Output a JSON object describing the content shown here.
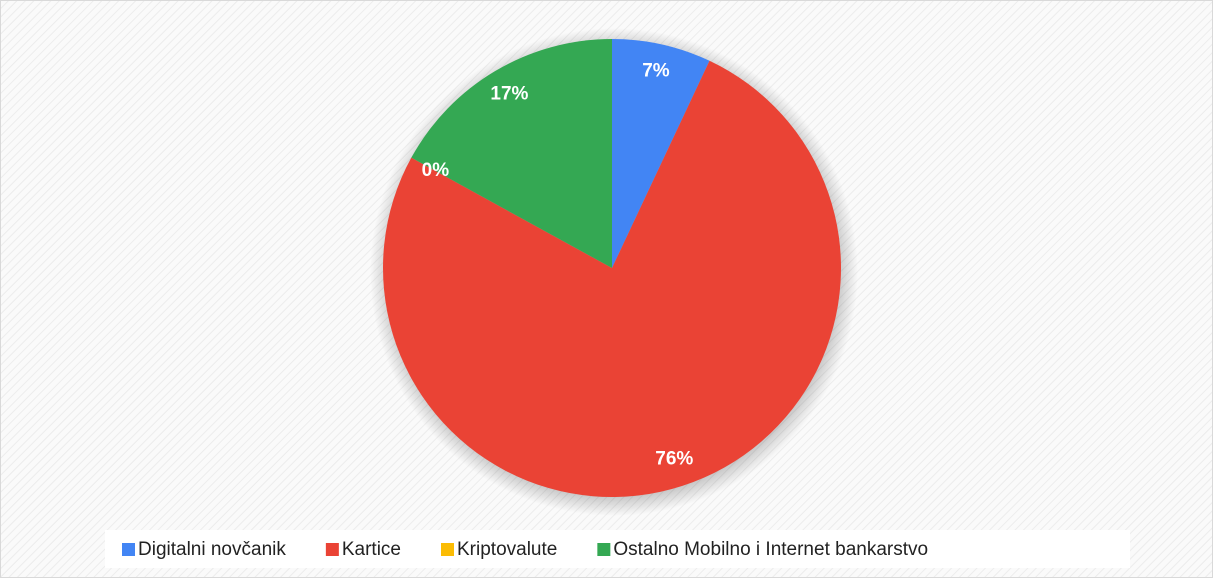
{
  "chart_data": {
    "type": "pie",
    "categories": [
      "Digitalni novčanik",
      "Kartice",
      "Kriptovalute",
      "Ostalno Mobilno i Internet bankarstvo"
    ],
    "values": [
      7,
      76,
      0,
      17
    ],
    "value_labels": [
      "7%",
      "76%",
      "0%",
      "17%"
    ],
    "colors": [
      "#4285f4",
      "#ea4335",
      "#fbbc04",
      "#34a853"
    ],
    "legend": "bottom"
  }
}
